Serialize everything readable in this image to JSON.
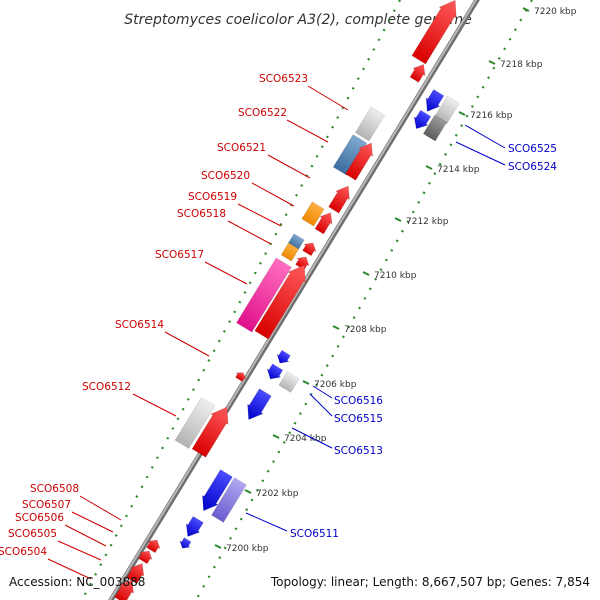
{
  "title": "Streptomyces coelicolor A3(2), complete genome",
  "accession": "Accession: NC_003888",
  "summary": "Topology: linear; Length: 8,667,507 bp; Genes: 7,854",
  "colors": {
    "forward_label": "#cc0000",
    "reverse_label": "#0000cc",
    "forward_gene": "#ff1a1a",
    "reverse_gene": "#1a1aff",
    "backbone": "#8c8c8c",
    "scale_tick": "#2a8a2a"
  },
  "scale": [
    "7200 kbp",
    "7202 kbp",
    "7204 kbp",
    "7206 kbp",
    "7208 kbp",
    "7210 kbp",
    "7212 kbp",
    "7214 kbp",
    "7216 kbp",
    "7218 kbp",
    "7220 kbp"
  ],
  "forward_labels": [
    "SCO6523",
    "SCO6522",
    "SCO6521",
    "SCO6520",
    "SCO6519",
    "SCO6518",
    "SCO6517",
    "SCO6514",
    "SCO6512",
    "SCO6508",
    "SCO6507",
    "SCO6506",
    "SCO6505",
    "SCO6504"
  ],
  "reverse_labels": [
    "SCO6525",
    "SCO6524",
    "SCO6516",
    "SCO6515",
    "SCO6513",
    "SCO6511"
  ]
}
